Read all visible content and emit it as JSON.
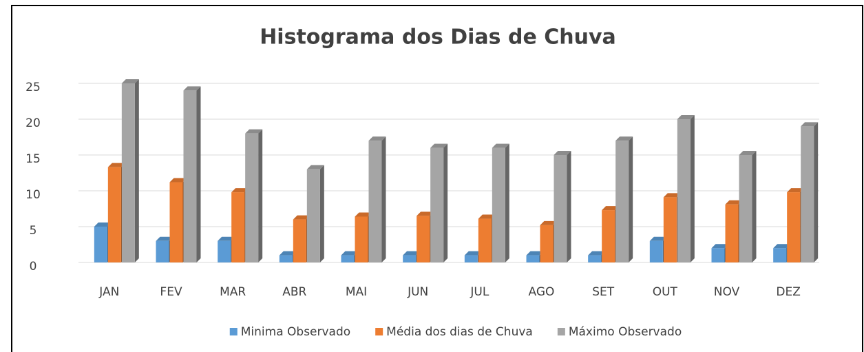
{
  "chart_data": {
    "type": "bar3d",
    "title": "Histograma dos Dias de Chuva",
    "categories": [
      "JAN",
      "FEV",
      "MAR",
      "ABR",
      "MAI",
      "JUN",
      "JUL",
      "AGO",
      "SET",
      "OUT",
      "NOV",
      "DEZ"
    ],
    "series": [
      {
        "name": "Minima Observado",
        "color": "#5b9bd5",
        "values": [
          5,
          3,
          3,
          1,
          1,
          1,
          1,
          1,
          1,
          3,
          2,
          2
        ]
      },
      {
        "name": "Média dos dias de Chuva",
        "color": "#ed7d31",
        "values": [
          13.3,
          11.2,
          9.8,
          6.0,
          6.4,
          6.5,
          6.1,
          5.2,
          7.3,
          9.1,
          8.1,
          9.8
        ]
      },
      {
        "name": "Máximo Observado",
        "color": "#a5a5a5",
        "values": [
          25,
          24,
          18,
          13,
          17,
          16,
          16,
          15,
          17,
          20,
          15,
          19
        ]
      }
    ],
    "ylim": [
      0,
      25
    ],
    "yticks": [
      0,
      5,
      10,
      15,
      20,
      25
    ],
    "grid": true,
    "legend": "bottom"
  }
}
